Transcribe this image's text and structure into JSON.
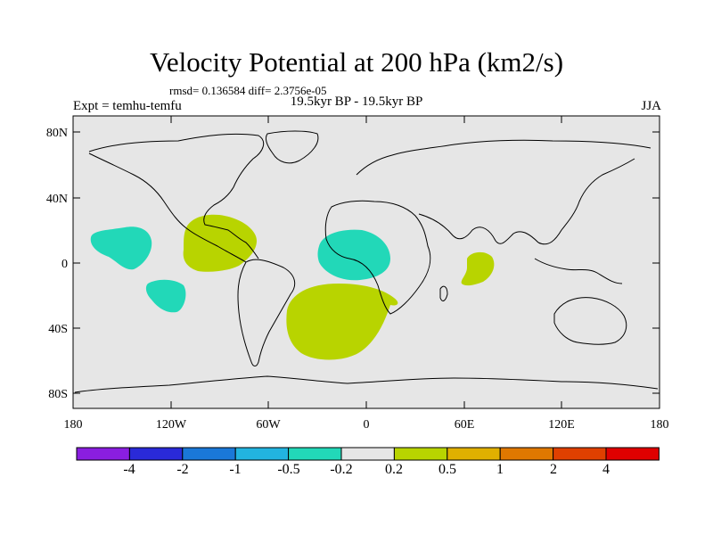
{
  "header": {
    "title": "Velocity Potential at 200 hPa (km2/s)",
    "stats": "rmsd= 0.136584  diff= 2.3756e-05",
    "experiment": "Expt = temhu-temfu",
    "period": "19.5kyr BP - 19.5kyr BP",
    "season": "JJA"
  },
  "axes": {
    "y_ticks": [
      "80N",
      "40N",
      "0",
      "40S",
      "80S"
    ],
    "x_ticks": [
      "180",
      "120W",
      "60W",
      "0",
      "60E",
      "120E",
      "180"
    ]
  },
  "colorbar": {
    "labels": [
      "-4",
      "-2",
      "-1",
      "-0.5",
      "-0.2",
      "0.2",
      "0.5",
      "1",
      "2",
      "4"
    ],
    "colors": [
      "#8a1ee0",
      "#2a2ad8",
      "#1a78d8",
      "#22b4e0",
      "#22d8b8",
      "#e6e6e6",
      "#b8d400",
      "#e0b000",
      "#e07800",
      "#e04000",
      "#e00000"
    ]
  },
  "colors": {
    "land_bg": "#e6e6e6",
    "positive_fill": "#b8d400",
    "negative_fill": "#22d8b8",
    "coast": "#000000"
  }
}
